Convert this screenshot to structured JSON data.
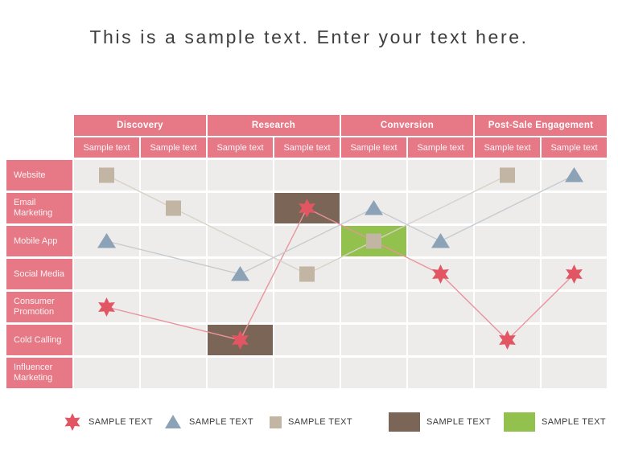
{
  "title": "This is a sample text. Enter your text here.",
  "table": {
    "stages": [
      {
        "label": "Discovery",
        "span": 2
      },
      {
        "label": "Research",
        "span": 2
      },
      {
        "label": "Conversion",
        "span": 2
      },
      {
        "label": "Post-Sale Engagement",
        "span": 2
      }
    ],
    "sub_columns": [
      "Sample text",
      "Sample text",
      "Sample text",
      "Sample text",
      "Sample text",
      "Sample text",
      "Sample text",
      "Sample text"
    ],
    "rows": [
      "Website",
      "Email Marketing",
      "Mobile App",
      "Social Media",
      "Consumer Promotion",
      "Cold Calling",
      "Influencer Marketing"
    ]
  },
  "chart_data": {
    "type": "scatter",
    "title": "This is a sample text. Enter your text here.",
    "x_groups": [
      "Discovery",
      "Research",
      "Conversion",
      "Post-Sale Engagement"
    ],
    "x_tick_labels": [
      "Sample text",
      "Sample text",
      "Sample text",
      "Sample text",
      "Sample text",
      "Sample text",
      "Sample text",
      "Sample text"
    ],
    "y_categories": [
      "Website",
      "Email Marketing",
      "Mobile App",
      "Social Media",
      "Consumer Promotion",
      "Cold Calling",
      "Influencer Marketing"
    ],
    "grid": true,
    "legend_position": "bottom",
    "series": [
      {
        "name": "SAMPLE TEXT",
        "marker": "star",
        "color": "#e25663",
        "line_color": "#e9939b",
        "points": [
          [
            1,
            "Consumer Promotion"
          ],
          [
            3,
            "Cold Calling"
          ],
          [
            4,
            "Email Marketing"
          ],
          [
            6,
            "Social Media"
          ],
          [
            7,
            "Cold Calling"
          ],
          [
            8,
            "Social Media"
          ]
        ]
      },
      {
        "name": "SAMPLE TEXT",
        "marker": "triangle",
        "color": "#8ca2b6",
        "line_color": "#c5cbd1",
        "points": [
          [
            1,
            "Mobile App"
          ],
          [
            3,
            "Social Media"
          ],
          [
            5,
            "Email Marketing"
          ],
          [
            6,
            "Mobile App"
          ],
          [
            8,
            "Website"
          ]
        ]
      },
      {
        "name": "SAMPLE TEXT",
        "marker": "square",
        "color": "#c2b5a4",
        "line_color": "#d8d1c8",
        "points": [
          [
            1,
            "Website"
          ],
          [
            2,
            "Email Marketing"
          ],
          [
            4,
            "Social Media"
          ],
          [
            5,
            "Mobile App"
          ],
          [
            7,
            "Website"
          ]
        ]
      },
      {
        "name": "SAMPLE TEXT",
        "marker": "cell",
        "color": "#7b6556",
        "points": [
          [
            4,
            "Email Marketing"
          ],
          [
            3,
            "Cold Calling"
          ]
        ]
      },
      {
        "name": "SAMPLE TEXT",
        "marker": "cell",
        "color": "#93c14d",
        "points": [
          [
            5,
            "Mobile App"
          ]
        ]
      }
    ]
  },
  "colors": {
    "header_pink": "#e77987",
    "grid_cell": "#edecea",
    "title_text": "#3e3e3e",
    "legend_text": "#3a3a3a",
    "background": "#ffffff"
  }
}
